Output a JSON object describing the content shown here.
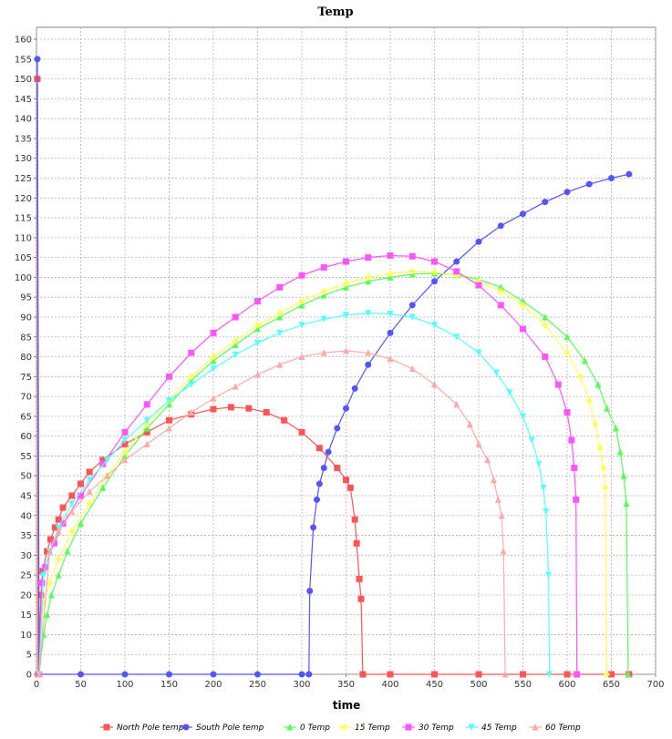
{
  "chart_data": {
    "type": "line",
    "title": "Temp",
    "xlabel": "time",
    "ylabel": "",
    "xlim": [
      0,
      700
    ],
    "ylim": [
      0,
      163
    ],
    "xticks": [
      0,
      50,
      100,
      150,
      200,
      250,
      300,
      350,
      400,
      450,
      500,
      550,
      600,
      650,
      700
    ],
    "yticks": [
      0,
      5,
      10,
      15,
      20,
      25,
      30,
      35,
      40,
      45,
      50,
      55,
      60,
      65,
      70,
      75,
      80,
      85,
      90,
      95,
      100,
      105,
      110,
      115,
      120,
      125,
      130,
      135,
      140,
      145,
      150,
      155,
      160
    ],
    "grid": true,
    "legend_position": "bottom",
    "series": [
      {
        "name": "North Pole temp",
        "color": "#ff5555",
        "marker": "square",
        "points": [
          [
            1,
            150
          ],
          [
            2,
            0
          ],
          [
            5,
            20
          ],
          [
            7,
            26
          ],
          [
            12,
            31
          ],
          [
            16,
            34
          ],
          [
            21,
            37
          ],
          [
            25,
            39
          ],
          [
            30,
            42
          ],
          [
            40,
            45
          ],
          [
            50,
            48
          ],
          [
            60,
            51
          ],
          [
            75,
            54
          ],
          [
            100,
            58
          ],
          [
            125,
            61
          ],
          [
            150,
            64
          ],
          [
            175,
            65.5
          ],
          [
            200,
            66.8
          ],
          [
            220,
            67.3
          ],
          [
            240,
            67
          ],
          [
            260,
            66
          ],
          [
            280,
            64
          ],
          [
            300,
            61
          ],
          [
            320,
            57
          ],
          [
            340,
            52
          ],
          [
            350,
            49
          ],
          [
            355,
            47
          ],
          [
            360,
            39
          ],
          [
            362,
            33
          ],
          [
            365,
            24
          ],
          [
            367,
            19
          ],
          [
            369,
            0
          ],
          [
            400,
            0
          ],
          [
            450,
            0
          ],
          [
            500,
            0
          ],
          [
            550,
            0
          ],
          [
            600,
            0
          ],
          [
            650,
            0
          ],
          [
            670,
            0
          ]
        ]
      },
      {
        "name": "South Pole temp",
        "color": "#5555ff",
        "marker": "circle",
        "points": [
          [
            1,
            155
          ],
          [
            3,
            0
          ],
          [
            50,
            0
          ],
          [
            100,
            0
          ],
          [
            150,
            0
          ],
          [
            200,
            0
          ],
          [
            250,
            0
          ],
          [
            300,
            0
          ],
          [
            308,
            0
          ],
          [
            309,
            21
          ],
          [
            313,
            37
          ],
          [
            317,
            44
          ],
          [
            320,
            48
          ],
          [
            325,
            52
          ],
          [
            330,
            56
          ],
          [
            340,
            62
          ],
          [
            350,
            67
          ],
          [
            360,
            72
          ],
          [
            375,
            78
          ],
          [
            400,
            86
          ],
          [
            425,
            93
          ],
          [
            450,
            99
          ],
          [
            475,
            104
          ],
          [
            500,
            109
          ],
          [
            525,
            113
          ],
          [
            550,
            116
          ],
          [
            575,
            119
          ],
          [
            600,
            121.5
          ],
          [
            625,
            123.5
          ],
          [
            650,
            125
          ],
          [
            670,
            126
          ]
        ]
      },
      {
        "name": "0 Temp",
        "color": "#55ff55",
        "marker": "triangle",
        "points": [
          [
            3,
            0
          ],
          [
            8,
            10
          ],
          [
            12,
            15
          ],
          [
            17,
            20
          ],
          [
            25,
            25
          ],
          [
            35,
            31
          ],
          [
            50,
            38
          ],
          [
            75,
            47
          ],
          [
            100,
            55
          ],
          [
            125,
            62
          ],
          [
            150,
            68
          ],
          [
            175,
            74
          ],
          [
            200,
            79
          ],
          [
            225,
            83
          ],
          [
            250,
            87
          ],
          [
            275,
            90
          ],
          [
            300,
            93
          ],
          [
            325,
            95.5
          ],
          [
            350,
            97.5
          ],
          [
            375,
            99
          ],
          [
            400,
            100
          ],
          [
            425,
            100.8
          ],
          [
            450,
            101
          ],
          [
            475,
            100.7
          ],
          [
            500,
            99.5
          ],
          [
            525,
            97.5
          ],
          [
            550,
            94
          ],
          [
            575,
            90
          ],
          [
            600,
            85
          ],
          [
            620,
            79
          ],
          [
            635,
            73
          ],
          [
            645,
            67
          ],
          [
            655,
            62
          ],
          [
            660,
            56
          ],
          [
            664,
            50
          ],
          [
            667,
            43
          ],
          [
            669,
            0
          ]
        ]
      },
      {
        "name": "15 Temp",
        "color": "#ffff55",
        "marker": "diamond",
        "points": [
          [
            3,
            0
          ],
          [
            8,
            18
          ],
          [
            15,
            23
          ],
          [
            25,
            29
          ],
          [
            40,
            36
          ],
          [
            60,
            43
          ],
          [
            80,
            50
          ],
          [
            100,
            56
          ],
          [
            125,
            63
          ],
          [
            150,
            69
          ],
          [
            175,
            75
          ],
          [
            200,
            80
          ],
          [
            225,
            84
          ],
          [
            250,
            88
          ],
          [
            275,
            91
          ],
          [
            300,
            94
          ],
          [
            325,
            96.5
          ],
          [
            350,
            98.5
          ],
          [
            375,
            100
          ],
          [
            400,
            101
          ],
          [
            425,
            101.5
          ],
          [
            450,
            101.3
          ],
          [
            475,
            100.5
          ],
          [
            500,
            99
          ],
          [
            525,
            96.5
          ],
          [
            550,
            93
          ],
          [
            575,
            88
          ],
          [
            600,
            81
          ],
          [
            615,
            75
          ],
          [
            625,
            69
          ],
          [
            632,
            63
          ],
          [
            637,
            57
          ],
          [
            641,
            52
          ],
          [
            643,
            47
          ],
          [
            645,
            0
          ]
        ]
      },
      {
        "name": "30 Temp",
        "color": "#ff55ff",
        "marker": "square",
        "points": [
          [
            3,
            0
          ],
          [
            6,
            23
          ],
          [
            10,
            27
          ],
          [
            20,
            33
          ],
          [
            30,
            38
          ],
          [
            50,
            45
          ],
          [
            75,
            53
          ],
          [
            100,
            61
          ],
          [
            125,
            68
          ],
          [
            150,
            75
          ],
          [
            175,
            81
          ],
          [
            200,
            86
          ],
          [
            225,
            90
          ],
          [
            250,
            94
          ],
          [
            275,
            97.5
          ],
          [
            300,
            100.5
          ],
          [
            325,
            102.5
          ],
          [
            350,
            104
          ],
          [
            375,
            105
          ],
          [
            400,
            105.5
          ],
          [
            425,
            105.3
          ],
          [
            450,
            104
          ],
          [
            475,
            101.5
          ],
          [
            500,
            98
          ],
          [
            525,
            93
          ],
          [
            550,
            87
          ],
          [
            575,
            80
          ],
          [
            590,
            73
          ],
          [
            600,
            66
          ],
          [
            605,
            59
          ],
          [
            608,
            52
          ],
          [
            610,
            44
          ],
          [
            611,
            0
          ]
        ]
      },
      {
        "name": "45 Temp",
        "color": "#55ffff",
        "marker": "triangle-down",
        "points": [
          [
            3,
            0
          ],
          [
            8,
            25
          ],
          [
            15,
            31
          ],
          [
            25,
            37
          ],
          [
            40,
            43
          ],
          [
            60,
            49
          ],
          [
            80,
            54
          ],
          [
            100,
            59
          ],
          [
            125,
            64
          ],
          [
            150,
            69
          ],
          [
            175,
            73
          ],
          [
            200,
            77
          ],
          [
            225,
            80.5
          ],
          [
            250,
            83.5
          ],
          [
            275,
            86
          ],
          [
            300,
            88
          ],
          [
            325,
            89.5
          ],
          [
            350,
            90.5
          ],
          [
            375,
            91
          ],
          [
            400,
            90.8
          ],
          [
            425,
            90
          ],
          [
            450,
            88
          ],
          [
            475,
            85
          ],
          [
            500,
            81
          ],
          [
            520,
            76
          ],
          [
            535,
            71
          ],
          [
            550,
            65
          ],
          [
            560,
            59
          ],
          [
            568,
            53
          ],
          [
            573,
            47
          ],
          [
            576,
            41
          ],
          [
            579,
            25
          ],
          [
            580,
            0
          ]
        ]
      },
      {
        "name": "60 Temp",
        "color": "#ffaaaa",
        "marker": "triangle",
        "points": [
          [
            3,
            0
          ],
          [
            15,
            31
          ],
          [
            25,
            36
          ],
          [
            40,
            41
          ],
          [
            60,
            46
          ],
          [
            80,
            50
          ],
          [
            100,
            54
          ],
          [
            125,
            58
          ],
          [
            150,
            62
          ],
          [
            175,
            66
          ],
          [
            200,
            69.5
          ],
          [
            225,
            72.5
          ],
          [
            250,
            75.5
          ],
          [
            275,
            78
          ],
          [
            300,
            80
          ],
          [
            325,
            81
          ],
          [
            350,
            81.5
          ],
          [
            375,
            81
          ],
          [
            400,
            79.5
          ],
          [
            425,
            77
          ],
          [
            450,
            73
          ],
          [
            475,
            68
          ],
          [
            490,
            63
          ],
          [
            500,
            58
          ],
          [
            510,
            54
          ],
          [
            517,
            49
          ],
          [
            522,
            44
          ],
          [
            526,
            40
          ],
          [
            528,
            31
          ],
          [
            530,
            0
          ]
        ]
      }
    ]
  }
}
